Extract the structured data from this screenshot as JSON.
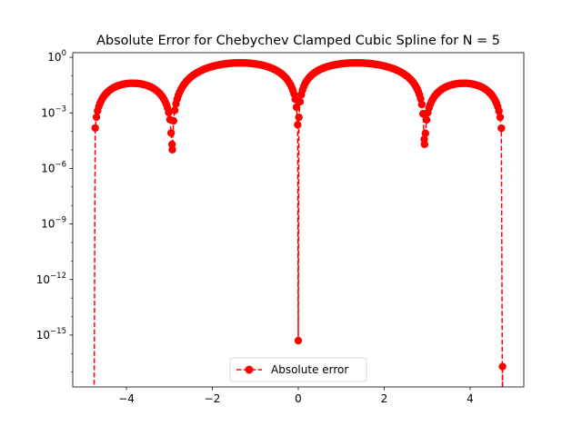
{
  "chart_data": {
    "type": "line",
    "title": "Absolute Error for Chebychev Clamped Cubic Spline for N = 5",
    "xlabel": "",
    "ylabel": "",
    "xlim": [
      -5.25,
      5.25
    ],
    "yscale": "log",
    "ylim_exp": [
      -17.8,
      0.25
    ],
    "grid": false,
    "legend_position": "lower center",
    "x_ticks": [
      {
        "value": -4,
        "label": "−4"
      },
      {
        "value": -2,
        "label": "−2"
      },
      {
        "value": 0,
        "label": "0"
      },
      {
        "value": 2,
        "label": "2"
      },
      {
        "value": 4,
        "label": "4"
      }
    ],
    "y_ticks": [
      {
        "exp": 0,
        "base": "10",
        "sup": "0"
      },
      {
        "exp": -3,
        "base": "10",
        "sup": "−3"
      },
      {
        "exp": -6,
        "base": "10",
        "sup": "−6"
      },
      {
        "exp": -9,
        "base": "10",
        "sup": "−9"
      },
      {
        "exp": -12,
        "base": "10",
        "sup": "−12"
      },
      {
        "exp": -15,
        "base": "10",
        "sup": "−15"
      }
    ],
    "x_domain": [
      -4.7553,
      4.7553
    ],
    "nodes": [
      {
        "x": -4.7553,
        "exp": -20
      },
      {
        "x": -2.9389,
        "exp": -4.7
      },
      {
        "x": 0.0,
        "exp": -15.3
      },
      {
        "x": 2.9389,
        "exp": -4.7
      },
      {
        "x": 4.7553,
        "exp": -16.7
      }
    ],
    "segment_peaks": [
      {
        "x": -3.85,
        "exp": -1.4
      },
      {
        "x": -1.35,
        "exp": -0.3
      },
      {
        "x": 1.35,
        "exp": -0.3
      },
      {
        "x": 3.85,
        "exp": -1.4
      }
    ],
    "series": [
      {
        "name": "Absolute error",
        "color": "#ff0000",
        "linestyle": "dashed",
        "marker": "circle"
      }
    ]
  }
}
